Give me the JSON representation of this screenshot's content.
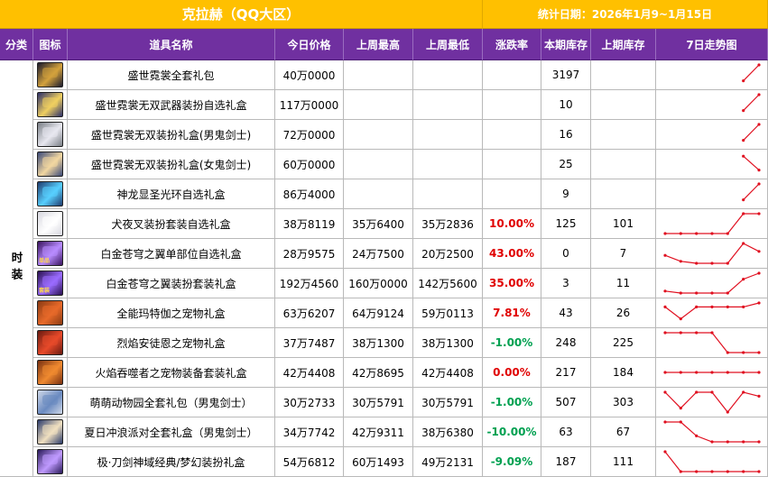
{
  "title": "克拉赫（QQ大区）",
  "stat_date": "统计日期：2026年1月9~1月15日",
  "headers": [
    "分类",
    "图标",
    "道具名称",
    "今日价格",
    "上周最高",
    "上周最低",
    "涨跌率",
    "本期库存",
    "上期库存",
    "7日走势图"
  ],
  "category": "时装",
  "colors": {
    "title_bg": "#ffc000",
    "header_bg": "#7030a0",
    "up": "#e00000",
    "down": "#00a050",
    "trend_line": "#e01020"
  },
  "rows": [
    {
      "name": "盛世霓裳全套礼包",
      "price": "40万0000",
      "high": "",
      "low": "",
      "change": "",
      "stock": "3197",
      "prev_stock": "",
      "icon": "chest-icon",
      "icon_colors": [
        "#1a1a2e",
        "#d4a23c"
      ],
      "icon_tag": "",
      "trend": [
        null,
        null,
        null,
        null,
        null,
        2,
        10
      ]
    },
    {
      "name": "盛世霓裳无双武器装扮自选礼盒",
      "price": "117万0000",
      "high": "",
      "low": "",
      "change": "",
      "stock": "10",
      "prev_stock": "",
      "icon": "weapon-box-icon",
      "icon_colors": [
        "#2b2f6b",
        "#f0d060"
      ],
      "icon_tag": "",
      "trend": [
        null,
        null,
        null,
        null,
        null,
        2,
        10
      ]
    },
    {
      "name": "盛世霓裳无双装扮礼盒(男鬼剑士)",
      "price": "72万0000",
      "high": "",
      "low": "",
      "change": "",
      "stock": "16",
      "prev_stock": "",
      "icon": "male-slayer-avatar-icon",
      "icon_colors": [
        "#7a7f86",
        "#e8e8f0"
      ],
      "icon_tag": "",
      "trend": [
        null,
        null,
        null,
        null,
        null,
        2,
        10
      ]
    },
    {
      "name": "盛世霓裳无双装扮礼盒(女鬼剑士)",
      "price": "60万0000",
      "high": "",
      "low": "",
      "change": "",
      "stock": "25",
      "prev_stock": "",
      "icon": "female-slayer-avatar-icon",
      "icon_colors": [
        "#3b4a7a",
        "#f2d7a0"
      ],
      "icon_tag": "",
      "trend": [
        null,
        null,
        null,
        null,
        null,
        9,
        2
      ]
    },
    {
      "name": "神龙显圣光环自选礼盒",
      "price": "86万4000",
      "high": "",
      "low": "",
      "change": "",
      "stock": "9",
      "prev_stock": "",
      "icon": "aura-box-icon",
      "icon_colors": [
        "#1e3b6e",
        "#58d0ff"
      ],
      "icon_tag": "",
      "trend": [
        null,
        null,
        null,
        null,
        null,
        2,
        10
      ]
    },
    {
      "name": "犬夜叉装扮套装自选礼盒",
      "price": "38万8119",
      "high": "35万6400",
      "low": "35万2836",
      "change": "10.00%",
      "dir": "up",
      "stock": "125",
      "prev_stock": "101",
      "icon": "inuyasha-avatar-icon",
      "icon_colors": [
        "#d8d8e0",
        "#ffffff"
      ],
      "icon_tag": "",
      "trend": [
        0,
        0,
        0,
        0,
        0,
        10,
        10
      ]
    },
    {
      "name": "白金苍穹之翼单部位自选礼盒",
      "price": "28万9575",
      "high": "24万7500",
      "low": "20万2500",
      "change": "43.00%",
      "dir": "up",
      "stock": "0",
      "prev_stock": "7",
      "icon": "wings-single-icon",
      "icon_colors": [
        "#3a1460",
        "#b88cff"
      ],
      "icon_tag": "单品",
      "trend": [
        4,
        1,
        0,
        0,
        0,
        10,
        6
      ]
    },
    {
      "name": "白金苍穹之翼装扮套装礼盒",
      "price": "192万4560",
      "high": "160万0000",
      "low": "142万5600",
      "change": "35.00%",
      "dir": "up",
      "stock": "3",
      "prev_stock": "11",
      "icon": "wings-set-icon",
      "icon_colors": [
        "#2a1050",
        "#9a6cff"
      ],
      "icon_tag": "套装",
      "trend": [
        1,
        0,
        0,
        0,
        0,
        7,
        10
      ]
    },
    {
      "name": "全能玛特伽之宠物礼盒",
      "price": "63万6207",
      "high": "64万9124",
      "low": "59万0113",
      "change": "7.81%",
      "dir": "up",
      "stock": "43",
      "prev_stock": "26",
      "icon": "pet-box-icon",
      "icon_colors": [
        "#8a3a12",
        "#e86a2a"
      ],
      "icon_tag": "",
      "trend": [
        8,
        2,
        8,
        8,
        8,
        8,
        10
      ]
    },
    {
      "name": "烈焰安徒恩之宠物礼盒",
      "price": "37万7487",
      "high": "38万1300",
      "low": "38万1300",
      "change": "-1.00%",
      "dir": "down",
      "stock": "248",
      "prev_stock": "225",
      "icon": "fire-pet-box-icon",
      "icon_colors": [
        "#6a1a10",
        "#e84a2a"
      ],
      "icon_tag": "",
      "trend": [
        10,
        10,
        10,
        10,
        0,
        0,
        0
      ]
    },
    {
      "name": "火焰吞噬者之宠物装备套装礼盒",
      "price": "42万4408",
      "high": "42万8695",
      "low": "42万4408",
      "change": "0.00%",
      "dir": "up",
      "stock": "217",
      "prev_stock": "184",
      "icon": "flame-equip-box-icon",
      "icon_colors": [
        "#7a3010",
        "#f08a30"
      ],
      "icon_tag": "",
      "trend": [
        5,
        5,
        5,
        5,
        5,
        5,
        5
      ]
    },
    {
      "name": "萌萌动物园全套礼包（男鬼剑士）",
      "price": "30万2733",
      "high": "30万5791",
      "low": "30万5791",
      "change": "-1.00%",
      "dir": "down",
      "stock": "507",
      "prev_stock": "303",
      "icon": "zoo-pack-icon",
      "icon_colors": [
        "#cfd8e8",
        "#6a8ac0"
      ],
      "icon_tag": "",
      "trend": [
        10,
        2,
        10,
        10,
        0,
        10,
        8
      ]
    },
    {
      "name": "夏日冲浪派对全套礼盒（男鬼剑士）",
      "price": "34万7742",
      "high": "42万9311",
      "low": "38万6380",
      "change": "-10.00%",
      "dir": "down",
      "stock": "63",
      "prev_stock": "67",
      "icon": "surf-party-box-icon",
      "icon_colors": [
        "#2a3a6a",
        "#f0e0c0"
      ],
      "icon_tag": "",
      "trend": [
        10,
        10,
        3,
        0,
        0,
        0,
        0
      ]
    },
    {
      "name": "极·刀剑神域经典/梦幻装扮礼盒",
      "price": "54万6812",
      "high": "60万1493",
      "low": "49万2131",
      "change": "-9.09%",
      "dir": "down",
      "stock": "187",
      "prev_stock": "111",
      "icon": "sao-box-icon",
      "icon_colors": [
        "#2a1a5a",
        "#c09aff"
      ],
      "icon_tag": "",
      "trend": [
        10,
        0,
        0,
        0,
        0,
        0,
        0
      ]
    }
  ]
}
